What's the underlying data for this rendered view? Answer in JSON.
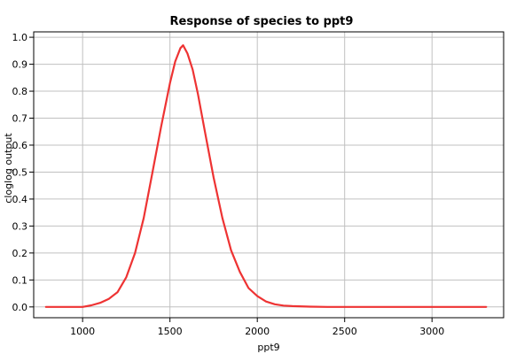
{
  "chart_data": {
    "type": "line",
    "title": "Response of species to ppt9",
    "xlabel": "ppt9",
    "ylabel": "cloglog output",
    "xlim": [
      720,
      3410
    ],
    "ylim": [
      -0.04,
      1.02
    ],
    "xticks": [
      1000,
      1500,
      2000,
      2500,
      3000
    ],
    "yticks": [
      0.0,
      0.1,
      0.2,
      0.3,
      0.4,
      0.5,
      0.6,
      0.7,
      0.8,
      0.9,
      1.0
    ],
    "xtick_labels": [
      "1000",
      "1500",
      "2000",
      "2500",
      "3000"
    ],
    "ytick_labels": [
      "0.0",
      "0.1",
      "0.2",
      "0.3",
      "0.4",
      "0.5",
      "0.6",
      "0.7",
      "0.8",
      "0.9",
      "1.0"
    ],
    "grid": true,
    "series": [
      {
        "color": "#ee3333",
        "x": [
          790,
          900,
          1000,
          1050,
          1100,
          1150,
          1200,
          1250,
          1300,
          1350,
          1400,
          1450,
          1500,
          1530,
          1560,
          1575,
          1600,
          1630,
          1660,
          1700,
          1750,
          1800,
          1850,
          1900,
          1950,
          2000,
          2050,
          2100,
          2150,
          2200,
          2300,
          2400,
          2600,
          2800,
          3000,
          3200,
          3310
        ],
        "y": [
          0.0,
          0.0,
          0.0,
          0.006,
          0.015,
          0.03,
          0.055,
          0.11,
          0.2,
          0.33,
          0.5,
          0.67,
          0.83,
          0.91,
          0.96,
          0.97,
          0.94,
          0.88,
          0.79,
          0.65,
          0.48,
          0.33,
          0.21,
          0.13,
          0.07,
          0.04,
          0.02,
          0.01,
          0.005,
          0.003,
          0.001,
          0.0,
          0.0,
          0.0,
          0.0,
          0.0,
          0.0
        ]
      }
    ]
  }
}
